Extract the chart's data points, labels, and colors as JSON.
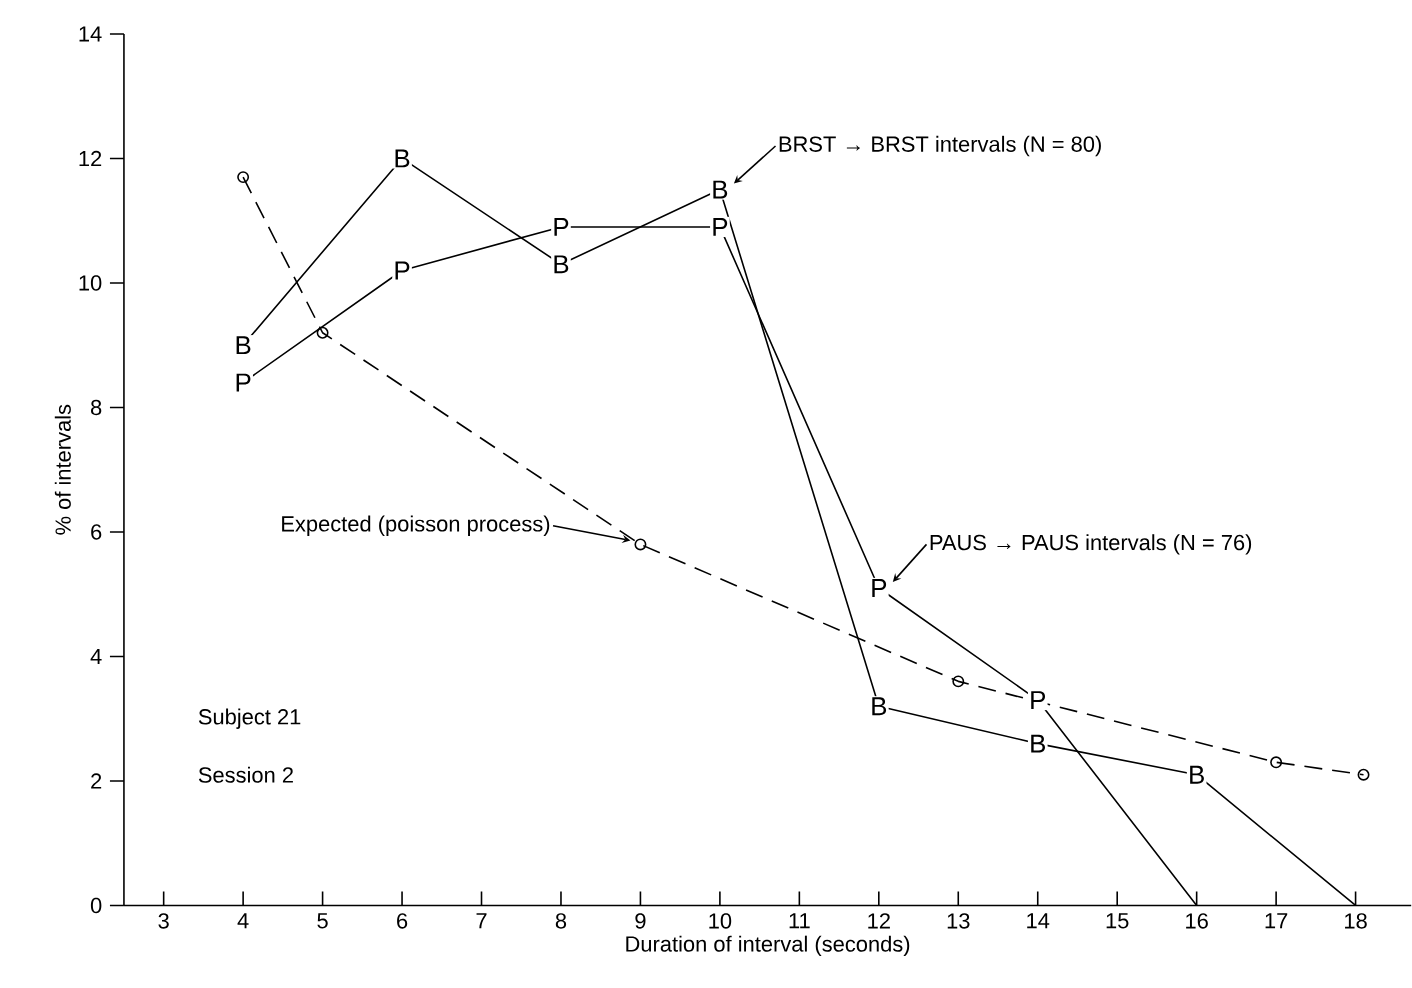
{
  "chart_data": {
    "type": "line",
    "xlabel": "Duration of interval (seconds)",
    "ylabel": "% of intervals",
    "series": [
      {
        "name": "BRST → BRST intervals (N = 80)",
        "color": "#000000",
        "marker": "square",
        "line_style": "solid",
        "x": [
          4,
          6,
          8,
          10,
          12,
          14,
          16,
          18
        ],
        "values": [
          9.0,
          12.0,
          10.3,
          11.5,
          3.2,
          2.6,
          2.1,
          0
        ],
        "value_labels": [
          "B",
          "B",
          "B",
          "B",
          "B",
          "B",
          "B",
          null
        ]
      },
      {
        "name": "PAUS → PAUS intervals (N = 76)",
        "color": "#000000",
        "marker": "square",
        "line_style": "solid",
        "x": [
          4,
          6,
          8,
          10,
          12,
          14,
          16
        ],
        "values": [
          8.4,
          10.2,
          10.9,
          10.9,
          5.1,
          3.3,
          0
        ],
        "value_labels": [
          "P",
          "P",
          "P",
          "P",
          "P",
          "P",
          null
        ]
      },
      {
        "color": "#000000",
        "marker": "circle",
        "line_style": "dashed",
        "x": [
          4,
          5,
          9,
          13,
          17,
          18.1
        ],
        "values": [
          11.7,
          9.2,
          5.8,
          3.6,
          2.3,
          2.1
        ]
      }
    ],
    "annotations": [
      {
        "text": "Expected (poisson process)",
        "x": 9,
        "y": 5.8
      },
      "Subject 21",
      "Session 2"
    ],
    "xlim": [
      2.5,
      18.7
    ],
    "ylim": [
      0,
      14
    ],
    "xticks": [
      3,
      4,
      5,
      6,
      7,
      8,
      9,
      10,
      11,
      12,
      13,
      14,
      15,
      16,
      17,
      18
    ],
    "yticks": [
      0,
      2,
      4,
      6,
      8,
      10,
      12,
      14
    ],
    "grid": false
  }
}
